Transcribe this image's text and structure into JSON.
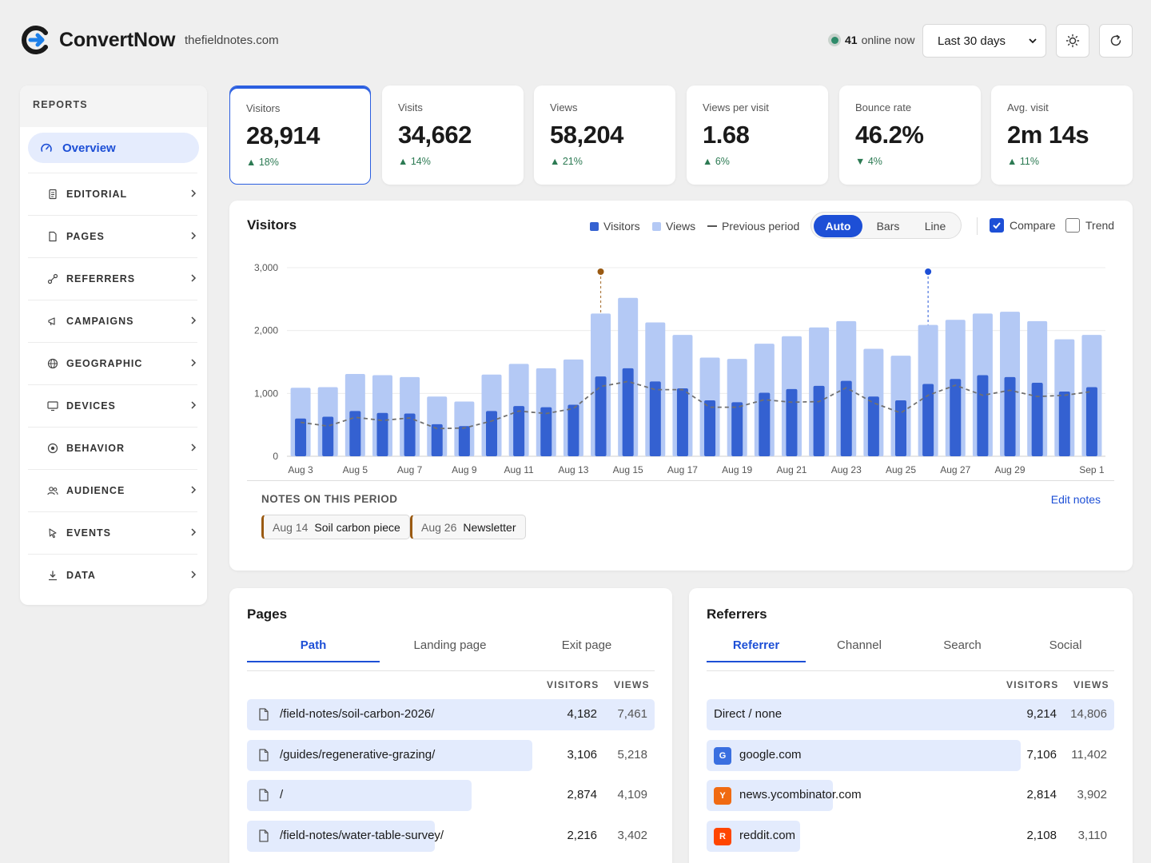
{
  "header": {
    "brand": "ConvertNow",
    "domain": "thefieldnotes.com",
    "online_count": "41",
    "online_label": "online now",
    "range_value": "Last 30 days",
    "accent": "#1d4fd6"
  },
  "sidebar": {
    "heading": "REPORTS",
    "active": {
      "label": "Overview",
      "icon": "gauge-icon"
    },
    "items": [
      {
        "label": "EDITORIAL",
        "icon": "document-icon"
      },
      {
        "label": "PAGES",
        "icon": "file-icon"
      },
      {
        "label": "REFERRERS",
        "icon": "link-icon"
      },
      {
        "label": "CAMPAIGNS",
        "icon": "megaphone-icon"
      },
      {
        "label": "GEOGRAPHIC",
        "icon": "globe-icon"
      },
      {
        "label": "DEVICES",
        "icon": "monitor-icon"
      },
      {
        "label": "BEHAVIOR",
        "icon": "target-icon"
      },
      {
        "label": "AUDIENCE",
        "icon": "users-icon"
      },
      {
        "label": "EVENTS",
        "icon": "pointer-icon"
      },
      {
        "label": "DATA",
        "icon": "download-icon"
      }
    ]
  },
  "kpis": [
    {
      "label": "Visitors",
      "value": "28,914",
      "change": "▲ 18%"
    },
    {
      "label": "Visits",
      "value": "34,662",
      "change": "▲ 14%"
    },
    {
      "label": "Views",
      "value": "58,204",
      "change": "▲ 21%"
    },
    {
      "label": "Views per visit",
      "value": "1.68",
      "change": "▲ 6%"
    },
    {
      "label": "Bounce rate",
      "value": "46.2%",
      "change": "▼ 4%"
    },
    {
      "label": "Avg. visit",
      "value": "2m 14s",
      "change": "▲ 11%"
    }
  ],
  "chart": {
    "title": "Visitors",
    "legend": {
      "visitors": "Visitors",
      "views": "Views",
      "previous": "Previous period"
    },
    "modes": [
      "Auto",
      "Bars",
      "Line"
    ],
    "compare_label": "Compare",
    "trend_label": "Trend",
    "notes_title": "NOTES ON THIS PERIOD",
    "edit_notes": "Edit notes",
    "notes": [
      {
        "date": "Aug 14",
        "text": "Soil carbon piece"
      },
      {
        "date": "Aug 26",
        "text": "Newsletter"
      }
    ]
  },
  "chart_data": {
    "type": "bar",
    "categories": [
      "Aug 3",
      "Aug 4",
      "Aug 5",
      "Aug 6",
      "Aug 7",
      "Aug 8",
      "Aug 9",
      "Aug 10",
      "Aug 11",
      "Aug 12",
      "Aug 13",
      "Aug 14",
      "Aug 15",
      "Aug 16",
      "Aug 17",
      "Aug 18",
      "Aug 19",
      "Aug 20",
      "Aug 21",
      "Aug 22",
      "Aug 23",
      "Aug 24",
      "Aug 25",
      "Aug 26",
      "Aug 27",
      "Aug 28",
      "Aug 29",
      "Aug 30",
      "Aug 31",
      "Sep 1"
    ],
    "tick_labels": [
      "Aug 3",
      "",
      "Aug 5",
      "",
      "Aug 7",
      "",
      "Aug 9",
      "",
      "Aug 11",
      "",
      "Aug 13",
      "",
      "Aug 15",
      "",
      "Aug 17",
      "",
      "Aug 19",
      "",
      "Aug 21",
      "",
      "Aug 23",
      "",
      "Aug 25",
      "",
      "Aug 27",
      "",
      "Aug 29",
      "",
      "",
      "Sep 1"
    ],
    "series": [
      {
        "name": "Views",
        "values": [
          1090,
          1100,
          1310,
          1290,
          1260,
          950,
          870,
          1300,
          1470,
          1400,
          1540,
          2270,
          2520,
          2130,
          1930,
          1570,
          1550,
          1790,
          1910,
          2050,
          2150,
          1710,
          1600,
          2090,
          2170,
          2270,
          2300,
          2150,
          1860,
          1930
        ]
      },
      {
        "name": "Visitors",
        "values": [
          600,
          630,
          720,
          690,
          680,
          510,
          480,
          720,
          800,
          780,
          820,
          1270,
          1400,
          1190,
          1080,
          890,
          860,
          1010,
          1070,
          1120,
          1200,
          950,
          890,
          1150,
          1230,
          1290,
          1260,
          1170,
          1030,
          1100
        ]
      },
      {
        "name": "Previous period",
        "values": [
          540,
          480,
          620,
          570,
          610,
          440,
          450,
          560,
          720,
          680,
          760,
          1110,
          1190,
          1060,
          1060,
          780,
          780,
          900,
          860,
          870,
          1090,
          850,
          690,
          970,
          1130,
          970,
          1050,
          950,
          970,
          1030
        ]
      }
    ],
    "annotations": [
      {
        "date": "Aug 14",
        "color": "#9a5a12"
      },
      {
        "date": "Aug 26",
        "color": "#1d4fd6"
      }
    ],
    "ylim": [
      0,
      3000
    ],
    "yticks": [
      0,
      1000,
      2000,
      3000
    ],
    "ytick_labels": [
      "0",
      "1,000",
      "2,000",
      "3,000"
    ],
    "colors": {
      "visitors": "#3461d1",
      "views": "#b4c9f5",
      "previous": "#707070"
    },
    "grid": true
  },
  "pages": {
    "title": "Pages",
    "tabs": [
      "Path",
      "Landing page",
      "Exit page"
    ],
    "col_visitors": "VISITORS",
    "col_views": "VIEWS",
    "rows": [
      {
        "name": "/field-notes/soil-carbon-2026/",
        "visitors": "4,182",
        "views": "7,461",
        "share": 1.0
      },
      {
        "name": "/guides/regenerative-grazing/",
        "visitors": "3,106",
        "views": "5,218",
        "share": 0.7
      },
      {
        "name": "/",
        "visitors": "2,874",
        "views": "4,109",
        "share": 0.55
      },
      {
        "name": "/field-notes/water-table-survey/",
        "visitors": "2,216",
        "views": "3,402",
        "share": 0.46
      }
    ]
  },
  "referrers": {
    "title": "Referrers",
    "tabs": [
      "Referrer",
      "Channel",
      "Search",
      "Social"
    ],
    "col_visitors": "VISITORS",
    "col_views": "VIEWS",
    "rows": [
      {
        "name": "Direct / none",
        "visitors": "9,214",
        "views": "14,806",
        "share": 1.0,
        "favicon": "",
        "color": ""
      },
      {
        "name": "google.com",
        "visitors": "7,106",
        "views": "11,402",
        "share": 0.77,
        "favicon": "G",
        "color": "#3a6fe0"
      },
      {
        "name": "news.ycombinator.com",
        "visitors": "2,814",
        "views": "3,902",
        "share": 0.31,
        "favicon": "Y",
        "color": "#f06a12"
      },
      {
        "name": "reddit.com",
        "visitors": "2,108",
        "views": "3,110",
        "share": 0.23,
        "favicon": "R",
        "color": "#ff4500"
      }
    ]
  }
}
